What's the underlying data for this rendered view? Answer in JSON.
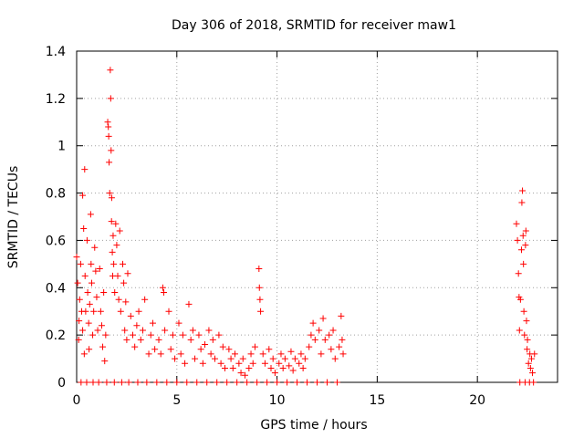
{
  "chart_data": {
    "type": "scatter",
    "title": "Day 306 of 2018, SRMTID for receiver maw1",
    "xlabel": "GPS time / hours",
    "ylabel": "SRMTID / TECUs",
    "xlim": [
      0,
      24
    ],
    "ylim": [
      0,
      1.4
    ],
    "x_ticks": [
      0,
      5,
      10,
      15,
      20
    ],
    "x_tick_labels": [
      "0",
      "5",
      "10",
      "15",
      "20"
    ],
    "y_ticks": [
      0,
      0.2,
      0.4,
      0.6,
      0.8,
      1.0,
      1.2,
      1.4
    ],
    "y_tick_labels": [
      "0",
      "0.2",
      "0.4",
      "0.6",
      "0.8",
      "1",
      "1.2",
      "1.4"
    ],
    "grid": true,
    "marker": "+",
    "series": [
      {
        "name": "maw1",
        "color": "#ff0000",
        "points": [
          [
            0.0,
            0.53
          ],
          [
            0.05,
            0.42
          ],
          [
            0.1,
            0.18
          ],
          [
            0.12,
            0.26
          ],
          [
            0.15,
            0.35
          ],
          [
            0.2,
            0.5
          ],
          [
            0.22,
            0.0
          ],
          [
            0.25,
            0.3
          ],
          [
            0.3,
            0.22
          ],
          [
            0.3,
            0.79
          ],
          [
            0.35,
            0.65
          ],
          [
            0.38,
            0.12
          ],
          [
            0.4,
            0.9
          ],
          [
            0.42,
            0.45
          ],
          [
            0.45,
            0.3
          ],
          [
            0.5,
            0.0
          ],
          [
            0.52,
            0.6
          ],
          [
            0.55,
            0.38
          ],
          [
            0.6,
            0.25
          ],
          [
            0.62,
            0.14
          ],
          [
            0.65,
            0.33
          ],
          [
            0.7,
            0.71
          ],
          [
            0.72,
            0.5
          ],
          [
            0.75,
            0.42
          ],
          [
            0.8,
            0.2
          ],
          [
            0.82,
            0.0
          ],
          [
            0.85,
            0.3
          ],
          [
            0.9,
            0.57
          ],
          [
            0.95,
            0.47
          ],
          [
            1.0,
            0.36
          ],
          [
            1.05,
            0.22
          ],
          [
            1.1,
            0.0
          ],
          [
            1.15,
            0.48
          ],
          [
            1.2,
            0.3
          ],
          [
            1.25,
            0.24
          ],
          [
            1.3,
            0.15
          ],
          [
            1.35,
            0.38
          ],
          [
            1.4,
            0.09
          ],
          [
            1.45,
            0.2
          ],
          [
            1.5,
            0.0
          ],
          [
            1.55,
            1.1
          ],
          [
            1.58,
            1.08
          ],
          [
            1.6,
            1.04
          ],
          [
            1.62,
            0.93
          ],
          [
            1.65,
            0.8
          ],
          [
            1.68,
            1.32
          ],
          [
            1.7,
            1.2
          ],
          [
            1.72,
            0.98
          ],
          [
            1.74,
            0.68
          ],
          [
            1.75,
            0.78
          ],
          [
            1.78,
            0.55
          ],
          [
            1.8,
            0.45
          ],
          [
            1.82,
            0.62
          ],
          [
            1.85,
            0.5
          ],
          [
            1.88,
            0.0
          ],
          [
            1.9,
            0.38
          ],
          [
            1.95,
            0.67
          ],
          [
            2.0,
            0.58
          ],
          [
            2.05,
            0.45
          ],
          [
            2.1,
            0.35
          ],
          [
            2.15,
            0.64
          ],
          [
            2.2,
            0.3
          ],
          [
            2.25,
            0.0
          ],
          [
            2.3,
            0.5
          ],
          [
            2.35,
            0.42
          ],
          [
            2.4,
            0.22
          ],
          [
            2.45,
            0.34
          ],
          [
            2.5,
            0.18
          ],
          [
            2.55,
            0.46
          ],
          [
            2.6,
            0.0
          ],
          [
            2.7,
            0.28
          ],
          [
            2.8,
            0.2
          ],
          [
            2.9,
            0.15
          ],
          [
            3.0,
            0.24
          ],
          [
            3.05,
            0.0
          ],
          [
            3.1,
            0.3
          ],
          [
            3.2,
            0.18
          ],
          [
            3.3,
            0.22
          ],
          [
            3.4,
            0.35
          ],
          [
            3.5,
            0.0
          ],
          [
            3.6,
            0.12
          ],
          [
            3.7,
            0.2
          ],
          [
            3.8,
            0.25
          ],
          [
            3.9,
            0.14
          ],
          [
            4.0,
            0.0
          ],
          [
            4.1,
            0.18
          ],
          [
            4.2,
            0.12
          ],
          [
            4.3,
            0.4
          ],
          [
            4.35,
            0.38
          ],
          [
            4.4,
            0.22
          ],
          [
            4.5,
            0.0
          ],
          [
            4.6,
            0.3
          ],
          [
            4.7,
            0.14
          ],
          [
            4.8,
            0.2
          ],
          [
            4.9,
            0.1
          ],
          [
            5.0,
            0.0
          ],
          [
            5.1,
            0.25
          ],
          [
            5.2,
            0.12
          ],
          [
            5.3,
            0.2
          ],
          [
            5.4,
            0.08
          ],
          [
            5.5,
            0.0
          ],
          [
            5.6,
            0.33
          ],
          [
            5.7,
            0.18
          ],
          [
            5.8,
            0.22
          ],
          [
            5.9,
            0.1
          ],
          [
            6.0,
            0.0
          ],
          [
            6.1,
            0.2
          ],
          [
            6.2,
            0.14
          ],
          [
            6.3,
            0.08
          ],
          [
            6.4,
            0.16
          ],
          [
            6.5,
            0.0
          ],
          [
            6.6,
            0.22
          ],
          [
            6.7,
            0.12
          ],
          [
            6.8,
            0.18
          ],
          [
            6.9,
            0.1
          ],
          [
            7.0,
            0.0
          ],
          [
            7.1,
            0.2
          ],
          [
            7.2,
            0.08
          ],
          [
            7.3,
            0.15
          ],
          [
            7.4,
            0.06
          ],
          [
            7.5,
            0.0
          ],
          [
            7.6,
            0.14
          ],
          [
            7.7,
            0.1
          ],
          [
            7.8,
            0.06
          ],
          [
            7.9,
            0.12
          ],
          [
            8.0,
            0.0
          ],
          [
            8.1,
            0.08
          ],
          [
            8.2,
            0.04
          ],
          [
            8.3,
            0.1
          ],
          [
            8.4,
            0.03
          ],
          [
            8.5,
            0.0
          ],
          [
            8.6,
            0.06
          ],
          [
            8.7,
            0.12
          ],
          [
            8.8,
            0.08
          ],
          [
            8.9,
            0.15
          ],
          [
            9.0,
            0.0
          ],
          [
            9.1,
            0.48
          ],
          [
            9.12,
            0.4
          ],
          [
            9.15,
            0.35
          ],
          [
            9.18,
            0.3
          ],
          [
            9.3,
            0.12
          ],
          [
            9.4,
            0.08
          ],
          [
            9.5,
            0.0
          ],
          [
            9.6,
            0.14
          ],
          [
            9.7,
            0.06
          ],
          [
            9.8,
            0.1
          ],
          [
            9.9,
            0.04
          ],
          [
            10.0,
            0.0
          ],
          [
            10.1,
            0.08
          ],
          [
            10.2,
            0.12
          ],
          [
            10.3,
            0.06
          ],
          [
            10.4,
            0.1
          ],
          [
            10.5,
            0.0
          ],
          [
            10.6,
            0.07
          ],
          [
            10.7,
            0.13
          ],
          [
            10.8,
            0.05
          ],
          [
            10.9,
            0.1
          ],
          [
            11.0,
            0.0
          ],
          [
            11.1,
            0.08
          ],
          [
            11.2,
            0.12
          ],
          [
            11.3,
            0.06
          ],
          [
            11.4,
            0.1
          ],
          [
            11.5,
            0.0
          ],
          [
            11.6,
            0.15
          ],
          [
            11.7,
            0.2
          ],
          [
            11.8,
            0.25
          ],
          [
            11.9,
            0.18
          ],
          [
            12.0,
            0.0
          ],
          [
            12.1,
            0.22
          ],
          [
            12.2,
            0.12
          ],
          [
            12.3,
            0.27
          ],
          [
            12.4,
            0.18
          ],
          [
            12.5,
            0.0
          ],
          [
            12.6,
            0.2
          ],
          [
            12.7,
            0.14
          ],
          [
            12.8,
            0.22
          ],
          [
            12.9,
            0.1
          ],
          [
            13.0,
            0.0
          ],
          [
            13.1,
            0.15
          ],
          [
            13.2,
            0.28
          ],
          [
            13.25,
            0.18
          ],
          [
            13.3,
            0.12
          ],
          [
            21.95,
            0.67
          ],
          [
            22.0,
            0.6
          ],
          [
            22.05,
            0.46
          ],
          [
            22.08,
            0.36
          ],
          [
            22.1,
            0.22
          ],
          [
            22.12,
            0.0
          ],
          [
            22.15,
            0.35
          ],
          [
            22.2,
            0.56
          ],
          [
            22.22,
            0.76
          ],
          [
            22.25,
            0.81
          ],
          [
            22.28,
            0.62
          ],
          [
            22.3,
            0.5
          ],
          [
            22.32,
            0.3
          ],
          [
            22.35,
            0.2
          ],
          [
            22.38,
            0.0
          ],
          [
            22.4,
            0.58
          ],
          [
            22.42,
            0.64
          ],
          [
            22.45,
            0.26
          ],
          [
            22.48,
            0.14
          ],
          [
            22.5,
            0.18
          ],
          [
            22.55,
            0.08
          ],
          [
            22.6,
            0.0
          ],
          [
            22.62,
            0.12
          ],
          [
            22.65,
            0.06
          ],
          [
            22.7,
            0.1
          ],
          [
            22.75,
            0.04
          ],
          [
            22.8,
            0.0
          ],
          [
            22.85,
            0.12
          ]
        ]
      }
    ]
  }
}
